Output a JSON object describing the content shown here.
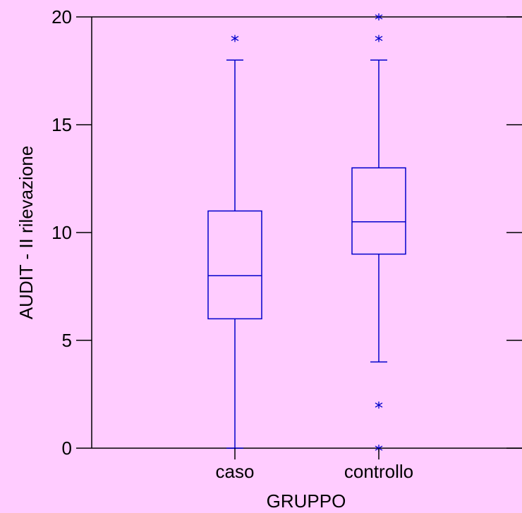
{
  "chart_data": {
    "type": "boxplot",
    "xlabel": "GRUPPO",
    "ylabel": "AUDIT - II rilevazione",
    "ylim": [
      0,
      20
    ],
    "yticks": [
      0,
      5,
      10,
      15,
      20
    ],
    "categories": [
      "caso",
      "controllo"
    ],
    "series": [
      {
        "category": "caso",
        "whisker_low": 0,
        "q1": 6,
        "median": 8,
        "q3": 11,
        "whisker_high": 18,
        "outliers": [
          19
        ]
      },
      {
        "category": "controllo",
        "whisker_low": 4,
        "q1": 9,
        "median": 10.5,
        "q3": 13,
        "whisker_high": 18,
        "outliers": [
          0,
          2,
          19,
          20
        ]
      }
    ],
    "grid": false,
    "legend": "none",
    "colors": {
      "background": "#ffccff",
      "box": "#0000cc",
      "axis": "#000000"
    }
  }
}
